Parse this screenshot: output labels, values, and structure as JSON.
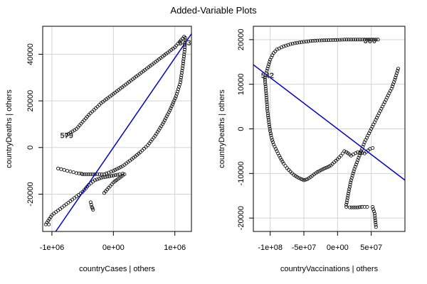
{
  "title": "Added-Variable Plots",
  "chart_data": [
    {
      "type": "scatter",
      "xlabel": "countryCases | others",
      "ylabel": "countryDeaths | others",
      "xlim": [
        -1150000,
        1270000
      ],
      "ylim": [
        -36000,
        52000
      ],
      "xticks": [
        -1000000,
        0,
        1000000
      ],
      "xtick_labels": [
        "-1e+06",
        "0e+00",
        "1e+06"
      ],
      "yticks": [
        -20000,
        0,
        20000,
        40000
      ],
      "ytick_labels": [
        "-20000",
        "0",
        "20000",
        "40000"
      ],
      "grid": true,
      "fit_line": {
        "slope": 0.0384,
        "intercept": 0
      },
      "point_labels": [
        {
          "text": "579",
          "x": -760000,
          "y": 5300
        },
        {
          "text": "543",
          "x": 1160000,
          "y": 45000
        }
      ],
      "curves": [
        {
          "x": [
            -760000,
            -600000,
            -400000,
            -200000,
            0,
            200000,
            400000,
            600000,
            800000,
            1000000,
            1100000,
            1150000
          ],
          "y": [
            5300,
            8000,
            14000,
            19000,
            23000,
            27000,
            31000,
            35000,
            39000,
            43000,
            46000,
            47500
          ]
        },
        {
          "x": [
            1170000,
            1160000,
            1130000,
            1090000,
            1020000,
            920000,
            800000,
            680000,
            560000,
            440000,
            300000,
            150000,
            0,
            -150000,
            -300000,
            -400000,
            -500000
          ],
          "y": [
            47000,
            42000,
            35000,
            28000,
            22000,
            16000,
            10000,
            5000,
            1000,
            -2000,
            -5000,
            -8000,
            -10000,
            -11500,
            -11500,
            -11500,
            -11500
          ]
        },
        {
          "x": [
            -1100000,
            -1000000,
            -900000,
            -800000,
            -700000,
            -600000,
            -500000,
            -400000,
            -300000,
            -200000,
            -100000,
            0,
            100000,
            150000
          ],
          "y": [
            -33000,
            -29000,
            -27000,
            -25000,
            -23000,
            -21000,
            -19000,
            -16000,
            -14000,
            -13000,
            -12500,
            -12000,
            -11500,
            -11200
          ]
        },
        {
          "x": [
            -900000,
            -850000,
            -800000,
            -750000,
            -700000,
            -650000,
            -600000,
            -560000,
            -520000
          ],
          "y": [
            -9000,
            -9300,
            -9600,
            -10000,
            -10300,
            -10600,
            -11000,
            -11100,
            -11200
          ]
        },
        {
          "x": [
            -150000,
            -100000,
            -50000,
            0,
            50000,
            100000,
            150000,
            180000
          ],
          "y": [
            -19500,
            -18000,
            -16500,
            -15000,
            -14000,
            -13000,
            -12000,
            -11500
          ]
        },
        {
          "x": [
            -370000,
            -360000,
            -350000,
            -340000,
            -330000
          ],
          "y": [
            -23500,
            -24500,
            -25500,
            -26000,
            -26700
          ]
        },
        {
          "x": [
            -1050000
          ],
          "y": [
            -33000
          ]
        }
      ]
    },
    {
      "type": "scatter",
      "xlabel": "countryVaccinations | others",
      "ylabel": "countryDeaths | others",
      "xlim": [
        -125000000,
        100000000
      ],
      "ylim": [
        -23000,
        23000
      ],
      "xticks": [
        -100000000,
        -50000000,
        0,
        50000000
      ],
      "xtick_labels": [
        "-1e+08",
        "-5e+07",
        "0e+00",
        "5e+07"
      ],
      "yticks": [
        -20000,
        -10000,
        0,
        10000,
        20000
      ],
      "ytick_labels": [
        "-20000",
        "-10000",
        "0",
        "10000",
        "20000"
      ],
      "grid": true,
      "fit_line": {
        "slope": -0.000115,
        "intercept": 0
      },
      "point_labels": [
        {
          "text": "542",
          "x": -104000000,
          "y": 12000
        },
        {
          "text": "360",
          "x": 48000000,
          "y": 19800
        }
      ],
      "curves": [
        {
          "x": [
            -108000000,
            -104000000,
            -100000000,
            -95000000,
            -90000000,
            -80000000,
            -70000000,
            -60000000,
            -50000000,
            -40000000,
            -30000000,
            -20000000,
            -10000000,
            0,
            10000000,
            20000000,
            30000000,
            40000000,
            50000000,
            60000000
          ],
          "y": [
            11500,
            13500,
            15500,
            17000,
            17800,
            18500,
            19000,
            19300,
            19500,
            19700,
            19800,
            19850,
            19900,
            19950,
            20000,
            20000,
            20000,
            20000,
            20000,
            20000
          ]
        },
        {
          "x": [
            -108000000,
            -106000000,
            -104000000,
            -102000000,
            -100000000,
            -98000000,
            -95000000,
            -90000000,
            -85000000,
            -80000000,
            -75000000,
            -70000000,
            -65000000,
            -60000000,
            -55000000,
            -50000000,
            -45000000,
            -40000000,
            -35000000,
            -30000000,
            -25000000,
            -20000000,
            -15000000,
            -10000000,
            -5000000,
            0,
            5000000,
            10000000,
            13000000,
            20000000,
            30000000,
            40000000,
            48000000,
            52000000
          ],
          "y": [
            11500,
            8000,
            4000,
            1500,
            -500,
            -2000,
            -3500,
            -5000,
            -6500,
            -7800,
            -8800,
            -9600,
            -10300,
            -10800,
            -11200,
            -11500,
            -11300,
            -10800,
            -10200,
            -9700,
            -9300,
            -8900,
            -8600,
            -8200,
            -7500,
            -6800,
            -6000,
            -5000,
            -5200,
            -6000,
            -5200,
            -5500,
            -4500,
            -4300
          ]
        },
        {
          "x": [
            13000000,
            18000000,
            24000000,
            30000000,
            36000000,
            40000000,
            44000000
          ],
          "y": [
            -17500,
            -17600,
            -17600,
            -17600,
            -17500,
            -17500,
            -17500
          ]
        },
        {
          "x": [
            13000000,
            16000000,
            20000000,
            25000000,
            30000000,
            35000000,
            40000000,
            45000000,
            50000000,
            55000000,
            60000000,
            65000000,
            70000000,
            75000000,
            80000000,
            85000000,
            90000000
          ],
          "y": [
            -17000,
            -14500,
            -11500,
            -9000,
            -7000,
            -5000,
            -3000,
            -1500,
            0,
            1500,
            3000,
            4500,
            6000,
            7500,
            9000,
            11000,
            13500
          ]
        },
        {
          "x": [
            52000000,
            55000000,
            56000000,
            57000000
          ],
          "y": [
            -17500,
            -19000,
            -20500,
            -22000
          ]
        }
      ]
    }
  ]
}
